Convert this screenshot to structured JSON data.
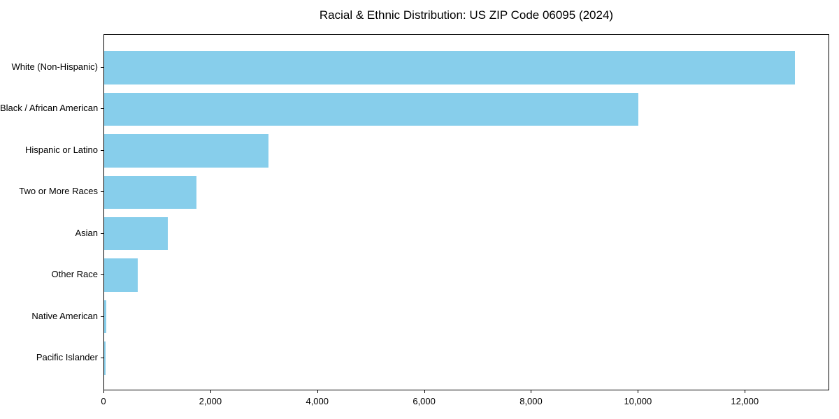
{
  "chart_data": {
    "type": "bar",
    "orientation": "horizontal",
    "title": "Racial & Ethnic Distribution: US ZIP Code 06095 (2024)",
    "categories": [
      "White (Non-Hispanic)",
      "Black / African American",
      "Hispanic or Latino",
      "Two or More Races",
      "Asian",
      "Other Race",
      "Native American",
      "Pacific Islander"
    ],
    "values": [
      12930,
      10000,
      3080,
      1730,
      1190,
      630,
      40,
      20
    ],
    "xlabel": "",
    "ylabel": "",
    "xlim": [
      0,
      13580
    ],
    "x_ticks": [
      0,
      2000,
      4000,
      6000,
      8000,
      10000,
      12000
    ],
    "x_tick_labels": [
      "0",
      "2,000",
      "4,000",
      "6,000",
      "8,000",
      "10,000",
      "12,000"
    ],
    "bar_color": "#87CEEB",
    "grid": false,
    "legend": false,
    "frame": true
  }
}
